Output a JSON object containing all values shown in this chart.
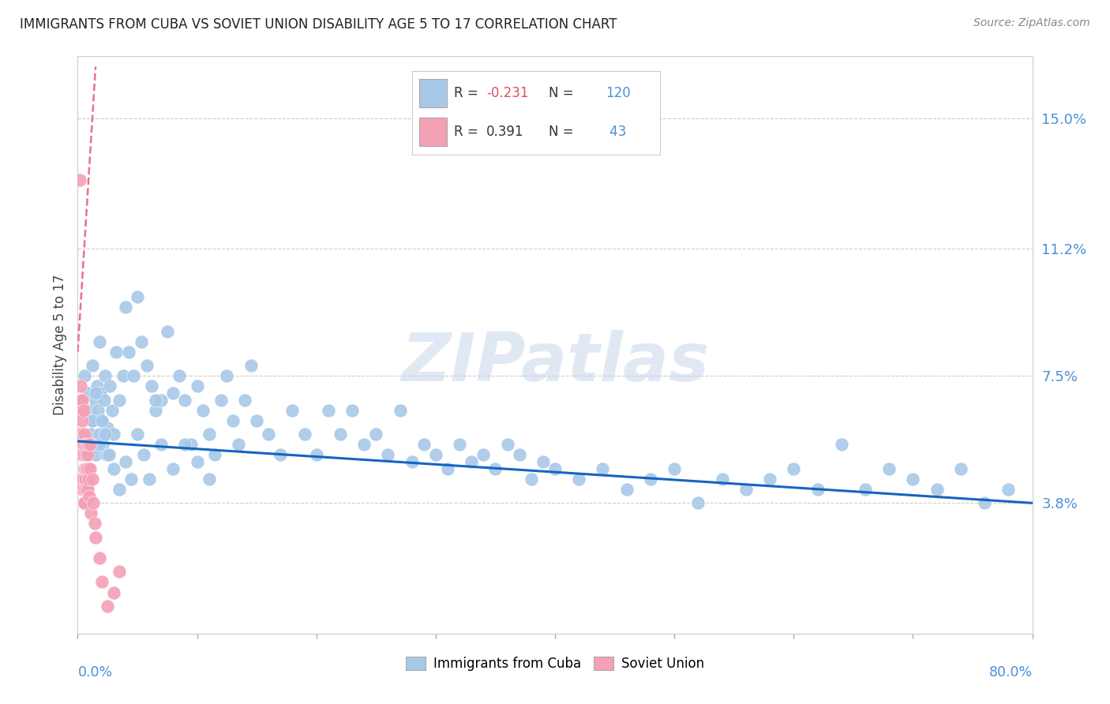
{
  "title": "IMMIGRANTS FROM CUBA VS SOVIET UNION DISABILITY AGE 5 TO 17 CORRELATION CHART",
  "source": "Source: ZipAtlas.com",
  "ylabel": "Disability Age 5 to 17",
  "ytick_labels": [
    "3.8%",
    "7.5%",
    "11.2%",
    "15.0%"
  ],
  "ytick_values": [
    3.8,
    7.5,
    11.2,
    15.0
  ],
  "xlim": [
    0.0,
    80.0
  ],
  "ylim": [
    0.0,
    16.8
  ],
  "cuba_R": "-0.231",
  "cuba_N": "120",
  "soviet_R": "0.391",
  "soviet_N": "43",
  "cuba_color": "#a8c8e8",
  "soviet_color": "#f4a0b5",
  "cuba_line_color": "#1565c0",
  "soviet_line_color": "#e87090",
  "legend_label_cuba": "Immigrants from Cuba",
  "legend_label_soviet": "Soviet Union",
  "watermark": "ZIPatlas",
  "watermark_color": "#c8d8ea",
  "n_color": "#4a90d9",
  "r_neg_color": "#e05060",
  "r_pos_color": "#333333",
  "cuba_line_start_y": 5.6,
  "cuba_line_end_y": 3.8,
  "soviet_line_x0": 0.0,
  "soviet_line_y0": 8.2,
  "soviet_line_x1": 1.5,
  "soviet_line_y1": 16.5,
  "cuba_scatter_x": [
    0.4,
    0.6,
    0.8,
    1.0,
    1.1,
    1.2,
    1.3,
    1.4,
    1.5,
    1.5,
    1.6,
    1.7,
    1.8,
    1.8,
    1.9,
    2.0,
    2.1,
    2.2,
    2.3,
    2.4,
    2.5,
    2.7,
    2.9,
    3.0,
    3.2,
    3.5,
    3.8,
    4.0,
    4.3,
    4.7,
    5.0,
    5.3,
    5.8,
    6.2,
    6.5,
    7.0,
    7.5,
    8.0,
    8.5,
    9.0,
    9.5,
    10.0,
    10.5,
    11.0,
    11.5,
    12.0,
    12.5,
    13.0,
    13.5,
    14.0,
    14.5,
    15.0,
    16.0,
    17.0,
    18.0,
    19.0,
    20.0,
    21.0,
    22.0,
    23.0,
    24.0,
    25.0,
    26.0,
    27.0,
    28.0,
    29.0,
    30.0,
    31.0,
    32.0,
    33.0,
    34.0,
    35.0,
    36.0,
    37.0,
    38.0,
    39.0,
    40.0,
    42.0,
    44.0,
    46.0,
    48.0,
    50.0,
    52.0,
    54.0,
    56.0,
    58.0,
    60.0,
    62.0,
    64.0,
    66.0,
    68.0,
    70.0,
    72.0,
    74.0,
    76.0,
    78.0,
    1.0,
    1.2,
    1.5,
    1.8,
    2.0,
    2.3,
    2.6,
    3.0,
    3.5,
    4.0,
    4.5,
    5.0,
    5.5,
    6.0,
    6.5,
    7.0,
    8.0,
    9.0,
    10.0,
    11.0
  ],
  "cuba_scatter_y": [
    6.8,
    7.5,
    7.0,
    6.5,
    5.8,
    7.8,
    6.2,
    5.5,
    6.8,
    5.2,
    7.2,
    6.5,
    5.8,
    8.5,
    7.0,
    6.2,
    5.5,
    6.8,
    7.5,
    5.2,
    6.0,
    7.2,
    6.5,
    5.8,
    8.2,
    6.8,
    7.5,
    9.5,
    8.2,
    7.5,
    9.8,
    8.5,
    7.8,
    7.2,
    6.5,
    6.8,
    8.8,
    7.0,
    7.5,
    6.8,
    5.5,
    7.2,
    6.5,
    5.8,
    5.2,
    6.8,
    7.5,
    6.2,
    5.5,
    6.8,
    7.8,
    6.2,
    5.8,
    5.2,
    6.5,
    5.8,
    5.2,
    6.5,
    5.8,
    6.5,
    5.5,
    5.8,
    5.2,
    6.5,
    5.0,
    5.5,
    5.2,
    4.8,
    5.5,
    5.0,
    5.2,
    4.8,
    5.5,
    5.2,
    4.5,
    5.0,
    4.8,
    4.5,
    4.8,
    4.2,
    4.5,
    4.8,
    3.8,
    4.5,
    4.2,
    4.5,
    4.8,
    4.2,
    5.5,
    4.2,
    4.8,
    4.5,
    4.2,
    4.8,
    3.8,
    4.2,
    5.5,
    6.2,
    7.0,
    5.5,
    6.2,
    5.8,
    5.2,
    4.8,
    4.2,
    5.0,
    4.5,
    5.8,
    5.2,
    4.5,
    6.8,
    5.5,
    4.8,
    5.5,
    5.0,
    4.5
  ],
  "soviet_scatter_x": [
    0.15,
    0.2,
    0.25,
    0.3,
    0.3,
    0.35,
    0.35,
    0.4,
    0.4,
    0.4,
    0.45,
    0.5,
    0.5,
    0.5,
    0.55,
    0.55,
    0.6,
    0.6,
    0.6,
    0.65,
    0.7,
    0.7,
    0.7,
    0.75,
    0.8,
    0.8,
    0.85,
    0.9,
    0.9,
    0.95,
    1.0,
    1.0,
    1.1,
    1.2,
    1.3,
    1.4,
    1.5,
    1.8,
    2.0,
    2.5,
    3.0,
    3.5,
    0.2
  ],
  "soviet_scatter_y": [
    6.5,
    5.8,
    7.2,
    5.2,
    6.8,
    4.5,
    5.5,
    6.2,
    4.2,
    6.8,
    5.5,
    3.8,
    6.5,
    5.2,
    4.8,
    5.8,
    4.2,
    5.5,
    3.8,
    4.5,
    5.2,
    4.8,
    4.2,
    5.5,
    4.8,
    5.2,
    4.2,
    4.5,
    5.5,
    4.0,
    4.8,
    5.5,
    3.5,
    4.5,
    3.8,
    3.2,
    2.8,
    2.2,
    1.5,
    0.8,
    1.2,
    1.8,
    13.2
  ],
  "xtick_positions": [
    0.0,
    10.0,
    20.0,
    30.0,
    40.0,
    50.0,
    60.0,
    70.0,
    80.0
  ]
}
